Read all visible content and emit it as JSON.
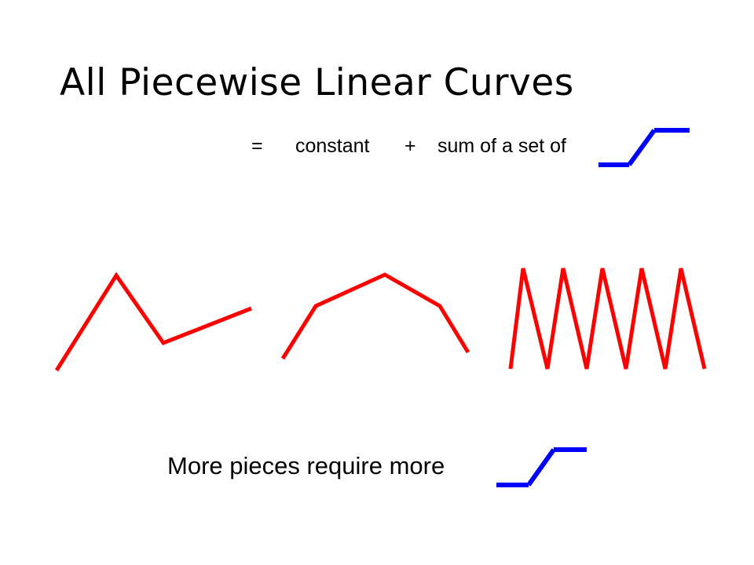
{
  "slide": {
    "title": "All Piecewise Linear Curves",
    "equation": {
      "equals": "=",
      "constant": "constant",
      "plus": "+",
      "sum_text": "sum of a set of"
    },
    "footer": "More pieces require more"
  },
  "colors": {
    "curve": "#ff0000",
    "step_glyph": "#0000ff"
  },
  "icons": [
    "ramp-step-icon",
    "ramp-step-icon"
  ]
}
